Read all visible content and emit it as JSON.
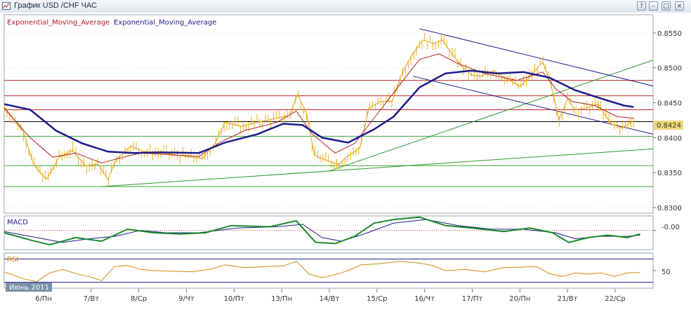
{
  "window": {
    "title": "График USD /CHF  ЧАС",
    "buttons": {
      "help": "?",
      "minimize": "–",
      "maximize": "□",
      "close": "×"
    }
  },
  "chart_data": {
    "type": "line",
    "symbol": "USD /CHF",
    "timeframe": "ЧАС",
    "legend": [
      "Exponential_Moving_Average",
      "Exponential_Moving_Average"
    ],
    "legend_colors": [
      "#b22222",
      "#1c1c8c"
    ],
    "price_axis": {
      "ticks": [
        "0.8550",
        "0.8500",
        "0.8450",
        "0.8400",
        "0.8350",
        "0.8300"
      ],
      "tick_values": [
        0.855,
        0.85,
        0.845,
        0.84,
        0.835,
        0.83
      ],
      "ylim": [
        0.8292,
        0.8576
      ]
    },
    "x_axis": {
      "ticks": [
        "6/Пн",
        "7/Вт",
        "8/Ср",
        "9/Чт",
        "10/Пт",
        "13/Пн",
        "14/Вт",
        "15/Ср",
        "16/Чт",
        "17/Пт",
        "20/Пн",
        "21/Вт",
        "22/Ср"
      ],
      "period_label": "Июнь 2011"
    },
    "last_price": "0.8424",
    "horizontal_levels": [
      {
        "value": 0.8482,
        "color": "#cc2222"
      },
      {
        "value": 0.846,
        "color": "#cc2222"
      },
      {
        "value": 0.844,
        "color": "#cc2222"
      },
      {
        "value": 0.8423,
        "color": "#000000"
      },
      {
        "value": 0.8402,
        "color": "#33aa33"
      },
      {
        "value": 0.836,
        "color": "#33aa33"
      },
      {
        "value": 0.833,
        "color": "#33aa33"
      }
    ],
    "trendlines": [
      {
        "points": [
          [
            0.15,
            0.833
          ],
          [
            1.0,
            0.8384
          ]
        ],
        "color": "#2a9a2a"
      },
      {
        "points": [
          [
            0.5,
            0.8352
          ],
          [
            1.0,
            0.8511
          ]
        ],
        "color": "#2a9a2a"
      },
      {
        "points": [
          [
            0.64,
            0.8556
          ],
          [
            1.0,
            0.8474
          ]
        ],
        "color": "#1c1c8c"
      },
      {
        "points": [
          [
            0.63,
            0.8488
          ],
          [
            1.0,
            0.8405
          ]
        ],
        "color": "#1c1c8c"
      }
    ],
    "price_series": [
      [
        0.0,
        0.8444
      ],
      [
        0.03,
        0.8408
      ],
      [
        0.045,
        0.8362
      ],
      [
        0.065,
        0.834
      ],
      [
        0.085,
        0.8372
      ],
      [
        0.105,
        0.8382
      ],
      [
        0.125,
        0.836
      ],
      [
        0.145,
        0.8362
      ],
      [
        0.16,
        0.834
      ],
      [
        0.172,
        0.8368
      ],
      [
        0.195,
        0.8388
      ],
      [
        0.215,
        0.838
      ],
      [
        0.245,
        0.8378
      ],
      [
        0.275,
        0.8374
      ],
      [
        0.305,
        0.837
      ],
      [
        0.325,
        0.8392
      ],
      [
        0.34,
        0.8422
      ],
      [
        0.365,
        0.8416
      ],
      [
        0.39,
        0.8422
      ],
      [
        0.42,
        0.8428
      ],
      [
        0.44,
        0.8432
      ],
      [
        0.452,
        0.8462
      ],
      [
        0.466,
        0.8435
      ],
      [
        0.478,
        0.8375
      ],
      [
        0.495,
        0.8368
      ],
      [
        0.515,
        0.8362
      ],
      [
        0.53,
        0.8374
      ],
      [
        0.548,
        0.8385
      ],
      [
        0.562,
        0.8442
      ],
      [
        0.58,
        0.8452
      ],
      [
        0.598,
        0.8452
      ],
      [
        0.612,
        0.849
      ],
      [
        0.628,
        0.8518
      ],
      [
        0.645,
        0.854
      ],
      [
        0.662,
        0.8535
      ],
      [
        0.675,
        0.854
      ],
      [
        0.69,
        0.852
      ],
      [
        0.705,
        0.8502
      ],
      [
        0.72,
        0.849
      ],
      [
        0.735,
        0.8488
      ],
      [
        0.755,
        0.8496
      ],
      [
        0.775,
        0.8484
      ],
      [
        0.795,
        0.8473
      ],
      [
        0.812,
        0.849
      ],
      [
        0.83,
        0.8508
      ],
      [
        0.842,
        0.8478
      ],
      [
        0.855,
        0.8426
      ],
      [
        0.868,
        0.8455
      ],
      [
        0.88,
        0.844
      ],
      [
        0.895,
        0.8442
      ],
      [
        0.915,
        0.8448
      ],
      [
        0.935,
        0.842
      ],
      [
        0.952,
        0.8414
      ],
      [
        0.97,
        0.8424
      ]
    ],
    "ema_fast": [
      [
        0.0,
        0.8442
      ],
      [
        0.04,
        0.84
      ],
      [
        0.075,
        0.8372
      ],
      [
        0.11,
        0.8378
      ],
      [
        0.15,
        0.8364
      ],
      [
        0.175,
        0.837
      ],
      [
        0.21,
        0.8378
      ],
      [
        0.25,
        0.8376
      ],
      [
        0.3,
        0.8373
      ],
      [
        0.33,
        0.8392
      ],
      [
        0.37,
        0.841
      ],
      [
        0.42,
        0.8422
      ],
      [
        0.45,
        0.8438
      ],
      [
        0.475,
        0.8405
      ],
      [
        0.51,
        0.8378
      ],
      [
        0.54,
        0.8392
      ],
      [
        0.575,
        0.8434
      ],
      [
        0.61,
        0.8476
      ],
      [
        0.64,
        0.8512
      ],
      [
        0.67,
        0.852
      ],
      [
        0.7,
        0.8506
      ],
      [
        0.74,
        0.8492
      ],
      [
        0.79,
        0.8482
      ],
      [
        0.83,
        0.8494
      ],
      [
        0.85,
        0.847
      ],
      [
        0.875,
        0.8452
      ],
      [
        0.91,
        0.8446
      ],
      [
        0.945,
        0.843
      ],
      [
        0.97,
        0.8428
      ]
    ],
    "ema_slow": [
      [
        0.0,
        0.8448
      ],
      [
        0.04,
        0.844
      ],
      [
        0.08,
        0.841
      ],
      [
        0.12,
        0.8392
      ],
      [
        0.16,
        0.838
      ],
      [
        0.2,
        0.8378
      ],
      [
        0.24,
        0.8379
      ],
      [
        0.3,
        0.8378
      ],
      [
        0.34,
        0.8393
      ],
      [
        0.39,
        0.8405
      ],
      [
        0.43,
        0.842
      ],
      [
        0.46,
        0.8418
      ],
      [
        0.49,
        0.84
      ],
      [
        0.53,
        0.8393
      ],
      [
        0.57,
        0.8412
      ],
      [
        0.6,
        0.843
      ],
      [
        0.64,
        0.8472
      ],
      [
        0.68,
        0.8492
      ],
      [
        0.72,
        0.8496
      ],
      [
        0.76,
        0.8492
      ],
      [
        0.8,
        0.8494
      ],
      [
        0.84,
        0.8486
      ],
      [
        0.88,
        0.8468
      ],
      [
        0.92,
        0.8456
      ],
      [
        0.955,
        0.8446
      ],
      [
        0.97,
        0.8444
      ]
    ],
    "macd": {
      "label": "MACD",
      "tick": "-0.00",
      "ylim": [
        -0.0016,
        0.0012
      ],
      "line": [
        [
          0.0,
          -0.0002
        ],
        [
          0.04,
          -0.0008
        ],
        [
          0.07,
          -0.0012
        ],
        [
          0.11,
          -0.0006
        ],
        [
          0.15,
          -0.0009
        ],
        [
          0.19,
          0.0001
        ],
        [
          0.23,
          -0.0002
        ],
        [
          0.27,
          -0.0003
        ],
        [
          0.31,
          -0.0002
        ],
        [
          0.35,
          0.0004
        ],
        [
          0.41,
          0.0003
        ],
        [
          0.45,
          0.0008
        ],
        [
          0.48,
          -0.001
        ],
        [
          0.51,
          -0.0011
        ],
        [
          0.54,
          -0.0005
        ],
        [
          0.57,
          0.0006
        ],
        [
          0.6,
          0.0009
        ],
        [
          0.64,
          0.0011
        ],
        [
          0.68,
          0.0004
        ],
        [
          0.72,
          0.0002
        ],
        [
          0.77,
          -0.0001
        ],
        [
          0.81,
          0.0002
        ],
        [
          0.845,
          -0.0002
        ],
        [
          0.87,
          -0.001
        ],
        [
          0.9,
          -0.0006
        ],
        [
          0.93,
          -0.0004
        ],
        [
          0.96,
          -0.0006
        ],
        [
          0.98,
          -0.0003
        ]
      ],
      "signal": [
        [
          0.0,
          -0.0001
        ],
        [
          0.05,
          -0.0006
        ],
        [
          0.09,
          -0.001
        ],
        [
          0.13,
          -0.0007
        ],
        [
          0.17,
          -0.0005
        ],
        [
          0.21,
          0.0
        ],
        [
          0.25,
          -0.0002
        ],
        [
          0.3,
          -0.0002
        ],
        [
          0.36,
          0.0002
        ],
        [
          0.42,
          0.0003
        ],
        [
          0.46,
          0.0005
        ],
        [
          0.49,
          -0.0006
        ],
        [
          0.52,
          -0.0009
        ],
        [
          0.56,
          -0.0002
        ],
        [
          0.6,
          0.0006
        ],
        [
          0.65,
          0.0009
        ],
        [
          0.7,
          0.0004
        ],
        [
          0.75,
          0.0001
        ],
        [
          0.8,
          0.0001
        ],
        [
          0.85,
          -0.0002
        ],
        [
          0.88,
          -0.0007
        ],
        [
          0.92,
          -0.0005
        ],
        [
          0.96,
          -0.0005
        ],
        [
          0.98,
          -0.0004
        ]
      ]
    },
    "rsi": {
      "label": "RSI",
      "tick": "50",
      "ylim": [
        20,
        80
      ],
      "levels": [
        70,
        30
      ],
      "line": [
        [
          0.0,
          48
        ],
        [
          0.03,
          36
        ],
        [
          0.05,
          31
        ],
        [
          0.07,
          46
        ],
        [
          0.09,
          52
        ],
        [
          0.11,
          45
        ],
        [
          0.13,
          40
        ],
        [
          0.15,
          33
        ],
        [
          0.17,
          57
        ],
        [
          0.19,
          59
        ],
        [
          0.21,
          52
        ],
        [
          0.23,
          50
        ],
        [
          0.26,
          49
        ],
        [
          0.29,
          48
        ],
        [
          0.32,
          53
        ],
        [
          0.34,
          60
        ],
        [
          0.37,
          55
        ],
        [
          0.4,
          57
        ],
        [
          0.43,
          58
        ],
        [
          0.45,
          66
        ],
        [
          0.47,
          44
        ],
        [
          0.49,
          38
        ],
        [
          0.51,
          43
        ],
        [
          0.53,
          50
        ],
        [
          0.55,
          60
        ],
        [
          0.58,
          62
        ],
        [
          0.61,
          66
        ],
        [
          0.64,
          63
        ],
        [
          0.66,
          59
        ],
        [
          0.68,
          50
        ],
        [
          0.71,
          52
        ],
        [
          0.74,
          48
        ],
        [
          0.77,
          55
        ],
        [
          0.8,
          56
        ],
        [
          0.82,
          57
        ],
        [
          0.84,
          45
        ],
        [
          0.86,
          40
        ],
        [
          0.88,
          46
        ],
        [
          0.9,
          44
        ],
        [
          0.92,
          46
        ],
        [
          0.94,
          40
        ],
        [
          0.96,
          46
        ],
        [
          0.98,
          47
        ]
      ]
    }
  }
}
